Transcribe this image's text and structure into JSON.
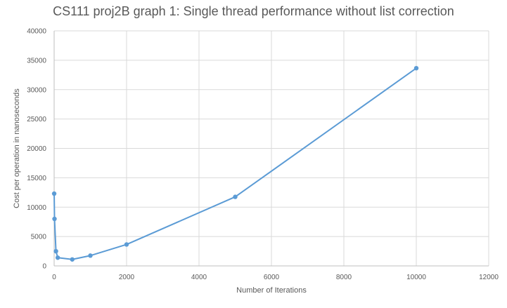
{
  "chart_data": {
    "type": "scatter",
    "title": "CS111 proj2B graph 1: Single thread performance without list correction",
    "xlabel": "Number of Iterations",
    "ylabel": "Cost per operation in nanoseconds",
    "xlim": [
      0,
      12000
    ],
    "ylim": [
      0,
      40000
    ],
    "x_ticks": [
      0,
      2000,
      4000,
      6000,
      8000,
      10000,
      12000
    ],
    "y_ticks": [
      0,
      5000,
      10000,
      15000,
      20000,
      25000,
      30000,
      35000,
      40000
    ],
    "grid": true,
    "legend": "none",
    "line_color": "#5b9bd5",
    "grid_color": "#d9d9d9",
    "series": [
      {
        "x": [
          1,
          10,
          50,
          100,
          500,
          1000,
          2000,
          5000,
          10000
        ],
        "y": [
          12300,
          8000,
          2500,
          1400,
          1100,
          1750,
          3650,
          11750,
          33650
        ]
      }
    ]
  }
}
